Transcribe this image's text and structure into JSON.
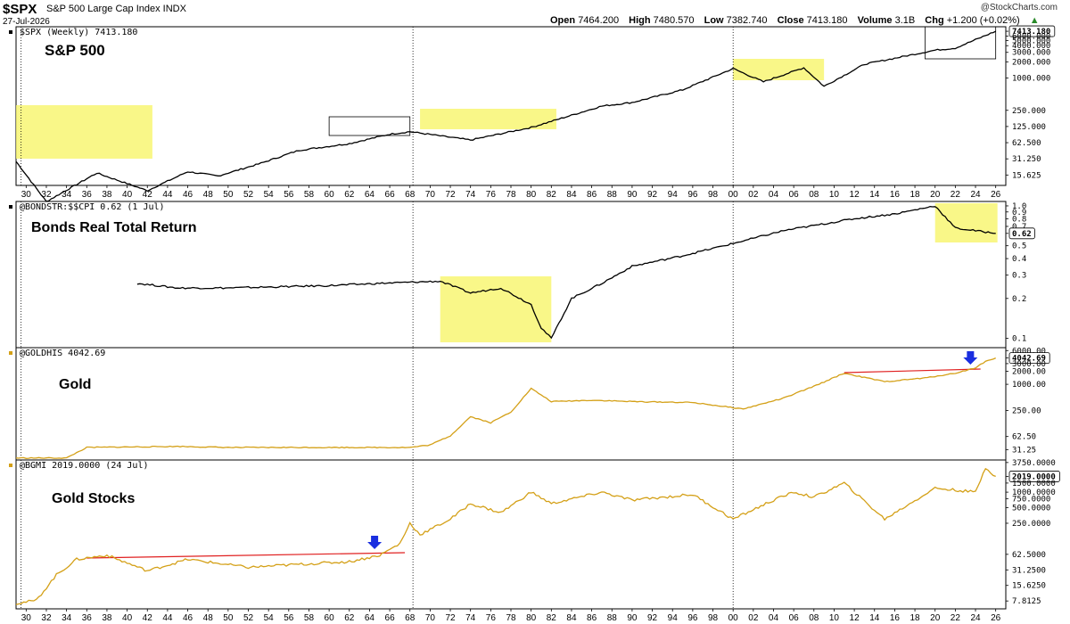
{
  "header": {
    "symbol": "$SPX",
    "description": "S&P 500 Large Cap Index INDX",
    "date": "27-Jul-2026",
    "copyright": "@StockCharts.com",
    "open_label": "Open",
    "open": "7464.200",
    "high_label": "High",
    "high": "7480.570",
    "low_label": "Low",
    "low": "7382.740",
    "close_label": "Close",
    "close": "7413.180",
    "volume_label": "Volume",
    "volume": "3.1B",
    "chg_label": "Chg",
    "chg": "+1.200 (+0.02%)"
  },
  "colors": {
    "black_line": "#000000",
    "gold_line": "#d4a017",
    "highlight": "#f7f56a",
    "red_line": "#e02020",
    "arrow": "#1a2ee0"
  },
  "x_axis": {
    "labels": [
      "30",
      "32",
      "34",
      "36",
      "38",
      "40",
      "42",
      "44",
      "46",
      "48",
      "50",
      "52",
      "54",
      "56",
      "58",
      "60",
      "62",
      "64",
      "66",
      "68",
      "70",
      "72",
      "74",
      "76",
      "78",
      "80",
      "82",
      "84",
      "86",
      "88",
      "90",
      "92",
      "94",
      "96",
      "98",
      "00",
      "02",
      "04",
      "06",
      "08",
      "10",
      "12",
      "14",
      "16",
      "18",
      "20",
      "22",
      "24",
      "26"
    ]
  },
  "chart_data": [
    {
      "type": "line",
      "legend": "$SPX (Weekly) 7413.180",
      "title": "S&P 500",
      "y_scale": "log",
      "y_ticks": [
        "7413.180",
        "6000.000",
        "5000.000",
        "4000.000",
        "3000.000",
        "2000.000",
        "1000.000",
        "250.000",
        "125.000",
        "62.500",
        "31.250",
        "15.625"
      ],
      "last_value": "7413.180",
      "series": [
        {
          "x": [
            1929,
            1932,
            1937,
            1942,
            1946,
            1949,
            1953,
            1957,
            1962,
            1966,
            1968,
            1974,
            1980,
            1987,
            1990,
            1995,
            2000,
            2003,
            2007,
            2009,
            2013,
            2020,
            2022,
            2026
          ],
          "y": [
            28,
            5,
            17,
            8,
            18,
            15,
            25,
            45,
            60,
            90,
            100,
            70,
            120,
            300,
            350,
            600,
            1500,
            850,
            1550,
            700,
            1800,
            3300,
            3600,
            7413
          ]
        }
      ],
      "highlights": [
        [
          1929,
          1942.5
        ],
        [
          1969,
          1982.5
        ],
        [
          2000,
          2009
        ]
      ],
      "boxes": [
        [
          1960,
          1968
        ],
        [
          2019,
          2026
        ]
      ]
    },
    {
      "type": "line",
      "legend": "@BONDSTR:$$CPI 0.62 (1 Jul)",
      "title": "Bonds Real Total Return",
      "y_scale": "log",
      "y_ticks": [
        "1.0",
        "0.9",
        "0.8",
        "0.7",
        "0.62",
        "0.5",
        "0.4",
        "0.3",
        "0.2",
        "0.1"
      ],
      "last_value": "0.62",
      "series": [
        {
          "x": [
            1941,
            1945,
            1950,
            1960,
            1965,
            1971,
            1974,
            1977,
            1980,
            1981,
            1982,
            1984,
            1987,
            1990,
            1995,
            2000,
            2005,
            2012,
            2016,
            2020,
            2022,
            2026
          ],
          "y": [
            0.26,
            0.24,
            0.24,
            0.25,
            0.26,
            0.27,
            0.22,
            0.24,
            0.18,
            0.12,
            0.1,
            0.2,
            0.26,
            0.35,
            0.42,
            0.52,
            0.65,
            0.8,
            0.87,
            1.0,
            0.68,
            0.62
          ]
        }
      ],
      "highlights": [
        [
          1971,
          1982
        ]
      ],
      "highlight2": [
        [
          2020,
          2026
        ]
      ]
    },
    {
      "type": "line",
      "legend": "@GOLDHIS 4042.69",
      "title": "Gold",
      "y_scale": "log",
      "y_ticks": [
        "6000.00",
        "4042.69",
        "3000.00",
        "2000.00",
        "1000.00",
        "250.00",
        "62.50",
        "31.25"
      ],
      "last_value": "4042.69",
      "series": [
        {
          "x": [
            1929,
            1934,
            1936,
            1945,
            1950,
            1968,
            1970,
            1972,
            1974,
            1976,
            1978,
            1980,
            1982,
            1986,
            1990,
            1996,
            2001,
            2005,
            2008,
            2011,
            2015,
            2019,
            2022,
            2024,
            2025,
            2026
          ],
          "y": [
            20,
            20,
            35,
            37,
            35,
            35,
            40,
            65,
            180,
            130,
            230,
            800,
            400,
            430,
            400,
            380,
            270,
            480,
            900,
            1800,
            1150,
            1400,
            1800,
            2400,
            3400,
            4042
          ]
        }
      ],
      "resistance": [
        [
          2011,
          2024.5
        ]
      ],
      "arrow_x": 2023.5
    },
    {
      "type": "line",
      "legend": "@BGMI 2019.0000 (24 Jul)",
      "title": "Gold Stocks",
      "y_scale": "log",
      "y_ticks": [
        "3750.0000",
        "2019.0000",
        "1500.0000",
        "1000.0000",
        "750.0000",
        "500.0000",
        "250.0000",
        "62.5000",
        "31.2500",
        "15.6250",
        "7.8125"
      ],
      "last_value": "2019.0000",
      "series": [
        {
          "x": [
            1929,
            1931,
            1933,
            1935,
            1938,
            1942,
            1946,
            1952,
            1957,
            1962,
            1965,
            1967,
            1968,
            1969,
            1972,
            1974,
            1977,
            1980,
            1982,
            1987,
            1990,
            1996,
            2000,
            2004,
            2006,
            2008,
            2011,
            2015,
            2020,
            2024,
            2025,
            2026
          ],
          "y": [
            7,
            8,
            25,
            50,
            60,
            30,
            50,
            35,
            40,
            45,
            60,
            100,
            250,
            150,
            300,
            600,
            400,
            1000,
            600,
            1000,
            700,
            900,
            300,
            700,
            1000,
            800,
            1500,
            300,
            1200,
            1000,
            3000,
            2019
          ]
        }
      ],
      "resistance": [
        [
          1936,
          1967.5
        ]
      ],
      "arrow_x": 1964.5
    }
  ]
}
